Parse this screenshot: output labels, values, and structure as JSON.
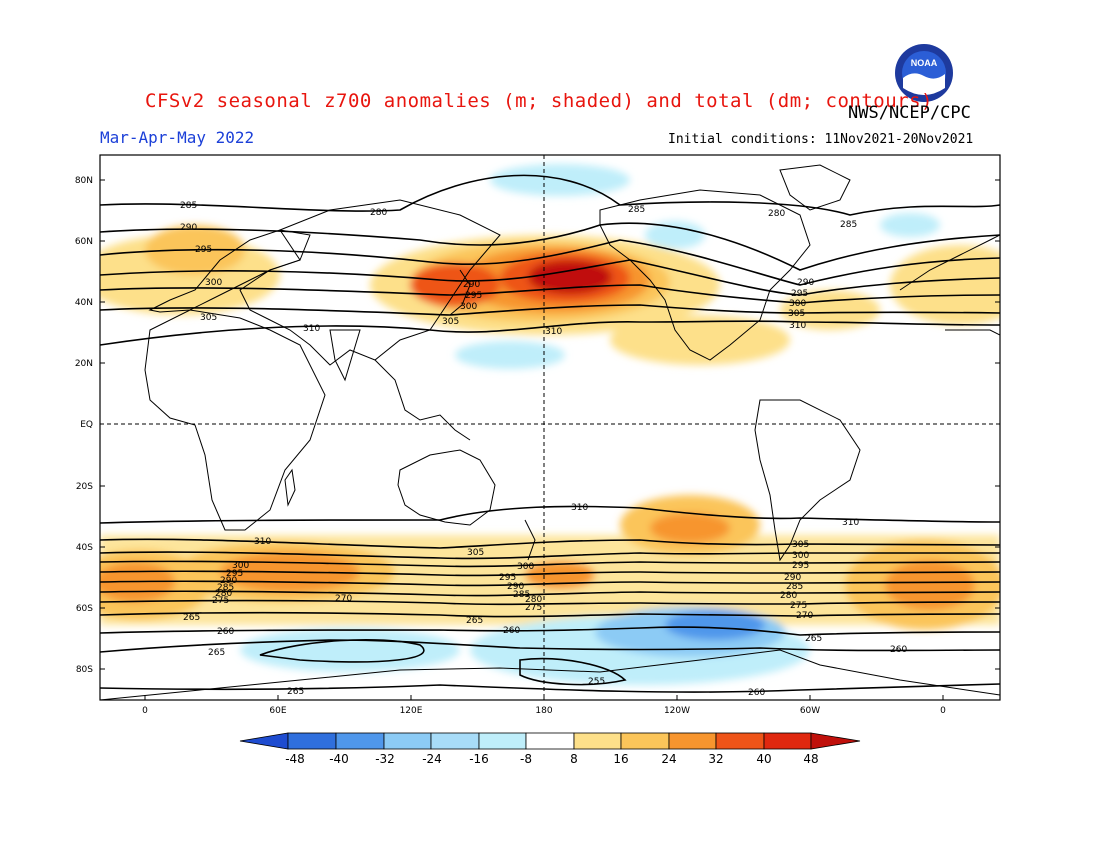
{
  "header": {
    "title": "CFSv2 seasonal z700 anomalies (m; shaded) and total (dm; contours)",
    "agency": "NWS/NCEP/CPC",
    "season": "Mar-Apr-May 2022",
    "initial_conditions": "Initial conditions: 11Nov2021-20Nov2021",
    "logo_text": "NOAA"
  },
  "colors": {
    "title": "#e8150e",
    "season": "#1c40d8",
    "pos1": "#fde08a",
    "pos2": "#fbc55a",
    "pos3": "#f7952e",
    "pos4": "#ee5418",
    "pos5": "#c0100b",
    "neg1": "#bfeefa",
    "neg2": "#8ccbf5",
    "neg3": "#4f97eb",
    "neg4": "#2f6fdd",
    "neg5": "#1e4cd0"
  },
  "map": {
    "lat_ticks": [
      "80N",
      "60N",
      "40N",
      "20N",
      "EQ",
      "20S",
      "40S",
      "60S",
      "80S"
    ],
    "lon_ticks": [
      "0",
      "60E",
      "120E",
      "180",
      "120W",
      "60W",
      "0"
    ]
  },
  "contour_labels": [
    {
      "text": "285"
    },
    {
      "text": "280"
    },
    {
      "text": "290"
    },
    {
      "text": "295"
    },
    {
      "text": "300"
    },
    {
      "text": "305"
    },
    {
      "text": "310"
    },
    {
      "text": "290"
    },
    {
      "text": "295"
    },
    {
      "text": "300"
    },
    {
      "text": "305"
    },
    {
      "text": "310"
    },
    {
      "text": "285"
    },
    {
      "text": "280"
    },
    {
      "text": "285"
    },
    {
      "text": "290"
    },
    {
      "text": "295"
    },
    {
      "text": "300"
    },
    {
      "text": "305"
    },
    {
      "text": "310"
    },
    {
      "text": "310"
    },
    {
      "text": "310"
    },
    {
      "text": "310"
    },
    {
      "text": "305"
    },
    {
      "text": "305"
    },
    {
      "text": "300"
    },
    {
      "text": "295"
    },
    {
      "text": "290"
    },
    {
      "text": "285"
    },
    {
      "text": "280"
    },
    {
      "text": "275"
    },
    {
      "text": "300"
    },
    {
      "text": "295"
    },
    {
      "text": "290"
    },
    {
      "text": "285"
    },
    {
      "text": "280"
    },
    {
      "text": "275"
    },
    {
      "text": "300"
    },
    {
      "text": "295"
    },
    {
      "text": "290"
    },
    {
      "text": "285"
    },
    {
      "text": "280"
    },
    {
      "text": "275"
    },
    {
      "text": "270"
    },
    {
      "text": "270"
    },
    {
      "text": "265"
    },
    {
      "text": "265"
    },
    {
      "text": "265"
    },
    {
      "text": "260"
    },
    {
      "text": "260"
    },
    {
      "text": "265"
    },
    {
      "text": "260"
    },
    {
      "text": "265"
    },
    {
      "text": "255"
    },
    {
      "text": "260"
    }
  ],
  "colorbar": {
    "ticks": [
      "-48",
      "-40",
      "-32",
      "-24",
      "-16",
      "-8",
      "8",
      "16",
      "24",
      "32",
      "40",
      "48"
    ]
  }
}
